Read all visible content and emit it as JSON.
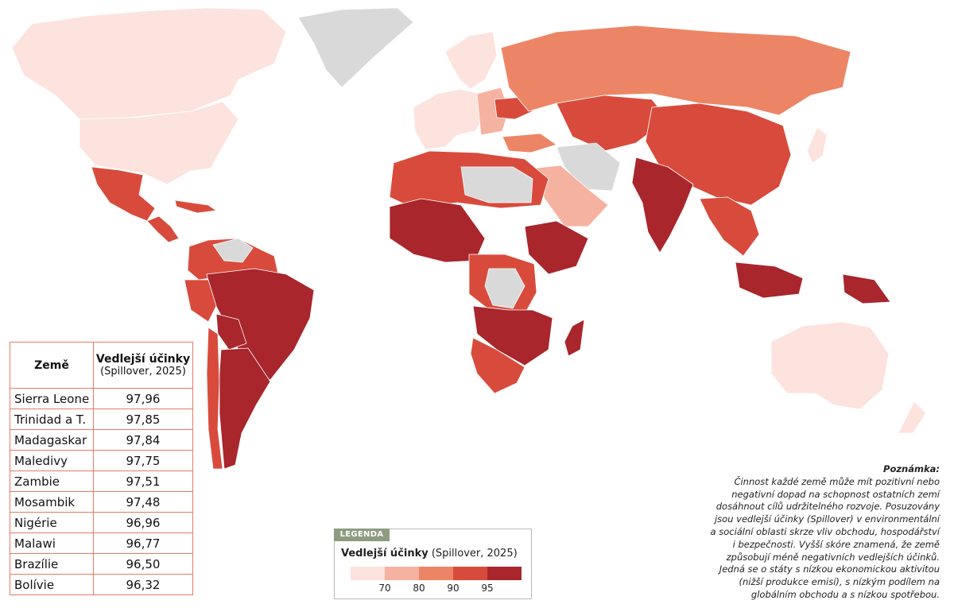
{
  "colors": {
    "c70": "#fce3dd",
    "c80": "#f6b2a1",
    "c90": "#ec8566",
    "c95": "#d84b3c",
    "ctop": "#a8262c",
    "nodata": "#d9d9d9",
    "border": "#e57b63"
  },
  "table": {
    "header_country": "Země",
    "header_value": "Vedlejší účinky",
    "header_value_sub": "(Spillover, 2025)",
    "rows": [
      {
        "country": "Sierra Leone",
        "value": "97,96"
      },
      {
        "country": "Trinidad a T.",
        "value": "97,85"
      },
      {
        "country": "Madagaskar",
        "value": "97,84"
      },
      {
        "country": "Maledivy",
        "value": "97,75"
      },
      {
        "country": "Zambie",
        "value": "97,51"
      },
      {
        "country": "Mosambik",
        "value": "97,48"
      },
      {
        "country": "Nigérie",
        "value": "96,96"
      },
      {
        "country": "Malawi",
        "value": "96,77"
      },
      {
        "country": "Brazílie",
        "value": "96,50"
      },
      {
        "country": "Bolívie",
        "value": "96,32"
      }
    ]
  },
  "legend": {
    "tab": "LEGENDA",
    "title_bold": "Vedlejší účinky",
    "title_rest": " (Spillover, 2025)",
    "ticks": [
      "70",
      "80",
      "90",
      "95"
    ]
  },
  "note": {
    "title": "Poznámka:",
    "lines": [
      "Činnost každé země může mít pozitivní nebo",
      "negativní dopad na schopnost ostatních zemí",
      "dosáhnout cílů udržitelného rozvoje. Posuzovány",
      "jsou vedlejší účinky (Spillover) v environmentální",
      "a sociální oblasti skrze vliv obchodu, hospodářství",
      "i bezpečnosti. Vyšší skóre znamená, že země",
      "způsobují méně negativních vedlejších účinků.",
      "Jedná se o státy s nízkou ekonomickou aktivitou",
      "(nižší produkce emisí), s nízkým podílem na",
      "globálním obchodu a s nízkou spotřebou."
    ]
  }
}
